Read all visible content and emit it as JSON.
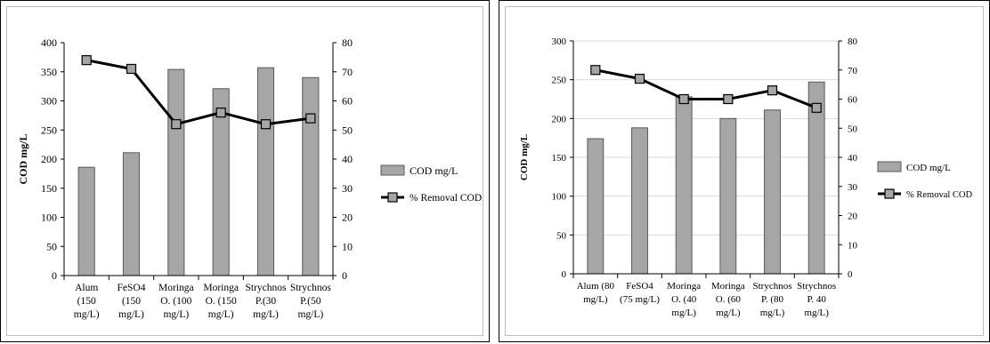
{
  "colors": {
    "bar_fill": "#a6a6a6",
    "bar_stroke": "#595959",
    "line": "#000000",
    "marker_fill": "#a6a6a6",
    "grid": "#d9d9d9"
  },
  "chart_data": [
    {
      "type": "bar+line",
      "title": "",
      "ylabel": "COD mg/L",
      "y2label": "",
      "ylim": [
        0,
        400
      ],
      "yticks": [
        0,
        50,
        100,
        150,
        200,
        250,
        300,
        350,
        400
      ],
      "y2lim": [
        0,
        80
      ],
      "y2ticks": [
        0,
        10,
        20,
        30,
        40,
        50,
        60,
        70,
        80
      ],
      "categories": [
        [
          "Alum",
          "(150",
          "mg/L)"
        ],
        [
          "FeSO4",
          "(150",
          "mg/L)"
        ],
        [
          "Moringa",
          "O. (100",
          "mg/L)"
        ],
        [
          "Moringa",
          "O. (150",
          "mg/L)"
        ],
        [
          "Strychnos",
          "P.(30",
          "mg/L)"
        ],
        [
          "Strychnos",
          "P.(50",
          "mg/L)"
        ]
      ],
      "series": [
        {
          "name": "COD mg/L",
          "kind": "bar",
          "axis": "left",
          "values": [
            186,
            211,
            354,
            321,
            357,
            340
          ]
        },
        {
          "name": "% Removal COD",
          "kind": "line",
          "axis": "right",
          "values": [
            74,
            71,
            52,
            56,
            52,
            54
          ]
        }
      ],
      "legend": [
        "COD mg/L",
        "% Removal COD"
      ],
      "legend_position": "right",
      "grid": false
    },
    {
      "type": "bar+line",
      "title": "",
      "ylabel": "COD mg/L",
      "y2label": "",
      "ylim": [
        0,
        300
      ],
      "yticks": [
        0,
        50,
        100,
        150,
        200,
        250,
        300
      ],
      "y2lim": [
        0,
        80
      ],
      "y2ticks": [
        0,
        10,
        20,
        30,
        40,
        50,
        60,
        70,
        80
      ],
      "categories": [
        [
          "Alum (80",
          "mg/L)"
        ],
        [
          "FeSO4",
          "(75 mg/L)"
        ],
        [
          "Moringa",
          "O. (40",
          "mg/L)"
        ],
        [
          "Moringa",
          "O. (60",
          "mg/L)"
        ],
        [
          "Strychnos",
          "P. (80",
          "mg/L)"
        ],
        [
          "Strychnos",
          "P. 40",
          "mg/L)"
        ]
      ],
      "series": [
        {
          "name": "COD mg/L",
          "kind": "bar",
          "axis": "left",
          "values": [
            174,
            188,
            228,
            200,
            211,
            247
          ]
        },
        {
          "name": "% Removal COD",
          "kind": "line",
          "axis": "right",
          "values": [
            70,
            67,
            60,
            60,
            63,
            57
          ]
        }
      ],
      "legend": [
        "COD mg/L",
        "% Removal COD"
      ],
      "legend_position": "right",
      "grid": true
    }
  ]
}
